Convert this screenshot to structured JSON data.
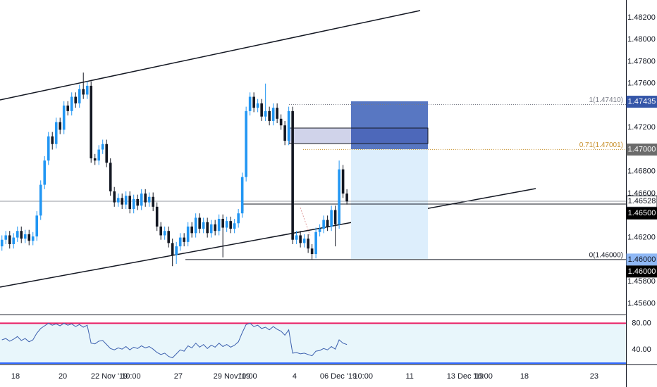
{
  "chart_data": {
    "type": "candlestick",
    "up_color": "#2196f3",
    "down_color": "#131722",
    "x": [
      0,
      1,
      2,
      3,
      4,
      5,
      6,
      7,
      8,
      9,
      10,
      11,
      12,
      13,
      14,
      15,
      16,
      17,
      18,
      19,
      20,
      21,
      22,
      23,
      24,
      25,
      26,
      27,
      28,
      29,
      30,
      31,
      32,
      33,
      34,
      35,
      36,
      37,
      38,
      39,
      40,
      41,
      42,
      43,
      44,
      45,
      46,
      47,
      48,
      49,
      50,
      51,
      52,
      53,
      54,
      55,
      56,
      57,
      58,
      59,
      60,
      61,
      62,
      63,
      64,
      65,
      66,
      67,
      68,
      69,
      70,
      71,
      72,
      73,
      74,
      75,
      76,
      77,
      78,
      79,
      80,
      81,
      82,
      83,
      84,
      85,
      86,
      87,
      88,
      89
    ],
    "open": [
      1.4612,
      1.4618,
      1.4622,
      1.4614,
      1.462,
      1.4626,
      1.4619,
      1.4623,
      1.4617,
      1.4621,
      1.464,
      1.4668,
      1.469,
      1.4712,
      1.4705,
      1.4725,
      1.4718,
      1.474,
      1.4735,
      1.4748,
      1.4742,
      1.4755,
      1.475,
      1.4758,
      1.4692,
      1.469,
      1.47,
      1.4705,
      1.4688,
      1.4662,
      1.4652,
      1.4656,
      1.465,
      1.4658,
      1.4646,
      1.4655,
      1.4649,
      1.466,
      1.4652,
      1.4657,
      1.4648,
      1.463,
      1.4622,
      1.4626,
      1.4615,
      1.4604,
      1.4612,
      1.462,
      1.4616,
      1.463,
      1.4624,
      1.4638,
      1.4628,
      1.4634,
      1.4624,
      1.4632,
      1.4626,
      1.4637,
      1.4629,
      1.4635,
      1.4628,
      1.4633,
      1.4642,
      1.4675,
      1.4735,
      1.4748,
      1.4738,
      1.4742,
      1.473,
      1.4735,
      1.4726,
      1.4738,
      1.4728,
      1.4722,
      1.4708,
      1.4735,
      1.4618,
      1.4622,
      1.4615,
      1.4619,
      1.461,
      1.4605,
      1.4625,
      1.4628,
      1.4636,
      1.463,
      1.4645,
      1.4632,
      1.4682,
      1.466
    ],
    "high": [
      1.4622,
      1.4626,
      1.4626,
      1.4624,
      1.463,
      1.463,
      1.4627,
      1.4627,
      1.4625,
      1.4644,
      1.4672,
      1.4694,
      1.4716,
      1.4716,
      1.4729,
      1.4729,
      1.4744,
      1.4744,
      1.4752,
      1.4752,
      1.4759,
      1.477,
      1.4762,
      1.4762,
      1.4696,
      1.4704,
      1.4709,
      1.4709,
      1.4692,
      1.4666,
      1.466,
      1.466,
      1.4662,
      1.4662,
      1.4659,
      1.4659,
      1.4664,
      1.4664,
      1.4661,
      1.4661,
      1.4652,
      1.4634,
      1.463,
      1.463,
      1.4619,
      1.4616,
      1.4624,
      1.4624,
      1.4634,
      1.4634,
      1.4642,
      1.4642,
      1.4638,
      1.4638,
      1.4636,
      1.4636,
      1.4641,
      1.4641,
      1.4639,
      1.4639,
      1.4637,
      1.4646,
      1.4679,
      1.4739,
      1.4752,
      1.4752,
      1.4746,
      1.4746,
      1.476,
      1.4739,
      1.4742,
      1.4742,
      1.4732,
      1.4726,
      1.4739,
      1.4739,
      1.4626,
      1.4626,
      1.4623,
      1.4623,
      1.4614,
      1.4629,
      1.4632,
      1.464,
      1.464,
      1.4649,
      1.4649,
      1.469,
      1.4686,
      1.4664
    ],
    "low": [
      1.4608,
      1.4614,
      1.461,
      1.461,
      1.4616,
      1.4615,
      1.4615,
      1.4613,
      1.4613,
      1.4617,
      1.4636,
      1.4664,
      1.4686,
      1.47,
      1.4701,
      1.4714,
      1.4714,
      1.4731,
      1.4731,
      1.4738,
      1.4738,
      1.4746,
      1.4746,
      1.4688,
      1.4686,
      1.4686,
      1.4696,
      1.4684,
      1.4658,
      1.4648,
      1.4648,
      1.4646,
      1.4646,
      1.4642,
      1.4642,
      1.4645,
      1.4645,
      1.4648,
      1.4648,
      1.4644,
      1.4626,
      1.4618,
      1.4618,
      1.4611,
      1.4594,
      1.4596,
      1.4608,
      1.4612,
      1.4612,
      1.462,
      1.462,
      1.4624,
      1.4624,
      1.462,
      1.462,
      1.4622,
      1.4622,
      1.4602,
      1.4625,
      1.4624,
      1.4624,
      1.4629,
      1.4638,
      1.4671,
      1.4731,
      1.4734,
      1.4734,
      1.4726,
      1.4726,
      1.4722,
      1.4722,
      1.4724,
      1.4718,
      1.4704,
      1.4704,
      1.4614,
      1.4614,
      1.4611,
      1.4611,
      1.4606,
      1.46,
      1.4601,
      1.4621,
      1.4624,
      1.4626,
      1.4626,
      1.4612,
      1.4628,
      1.4656,
      1.465
    ],
    "close": [
      1.4618,
      1.4622,
      1.4614,
      1.462,
      1.4626,
      1.4619,
      1.4623,
      1.4617,
      1.4621,
      1.464,
      1.4668,
      1.469,
      1.4712,
      1.4705,
      1.4725,
      1.4718,
      1.474,
      1.4735,
      1.4748,
      1.4742,
      1.4755,
      1.475,
      1.4758,
      1.4692,
      1.469,
      1.47,
      1.4705,
      1.4688,
      1.4662,
      1.4652,
      1.4656,
      1.465,
      1.4658,
      1.4646,
      1.4655,
      1.4649,
      1.466,
      1.4652,
      1.4657,
      1.4648,
      1.463,
      1.4622,
      1.4626,
      1.4615,
      1.4604,
      1.4612,
      1.462,
      1.4616,
      1.463,
      1.4624,
      1.4638,
      1.4628,
      1.4634,
      1.4624,
      1.4632,
      1.4626,
      1.4637,
      1.4629,
      1.4635,
      1.4628,
      1.4633,
      1.4642,
      1.4675,
      1.4735,
      1.4748,
      1.4738,
      1.4742,
      1.473,
      1.4735,
      1.4726,
      1.4738,
      1.4728,
      1.4722,
      1.4708,
      1.4735,
      1.4618,
      1.4622,
      1.4615,
      1.4619,
      1.461,
      1.4605,
      1.4625,
      1.4628,
      1.4636,
      1.463,
      1.4645,
      1.4632,
      1.4682,
      1.466,
      1.46528
    ],
    "xlim": [
      -0.5,
      161
    ],
    "xticks": [
      {
        "value": 3.5,
        "label": "18"
      },
      {
        "value": 15.7,
        "label": "20"
      },
      {
        "value": 27.7,
        "label": "22 Nov '19"
      },
      {
        "value": 33.3,
        "label": "10:00"
      },
      {
        "value": 45.5,
        "label": "27"
      },
      {
        "value": 59.3,
        "label": "29 Nov '19"
      },
      {
        "value": 63.3,
        "label": "10:00"
      },
      {
        "value": 75.5,
        "label": "4"
      },
      {
        "value": 86.8,
        "label": "06 Dec '19"
      },
      {
        "value": 93.2,
        "label": "10:00"
      },
      {
        "value": 105.2,
        "label": "11"
      },
      {
        "value": 119.5,
        "label": "13 Dec '19"
      },
      {
        "value": 124.1,
        "label": "10:00"
      },
      {
        "value": 134.8,
        "label": "18"
      },
      {
        "value": 152.8,
        "label": "23"
      }
    ],
    "ylim": [
      1.455,
      1.4836
    ],
    "yticks": [
      {
        "value": 1.456,
        "label": "1.45600"
      },
      {
        "value": 1.458,
        "label": "1.45800"
      },
      {
        "value": 1.46,
        "label": "1.46000"
      },
      {
        "value": 1.462,
        "label": "1.46200"
      },
      {
        "value": 1.464,
        "label": "1.46400"
      },
      {
        "value": 1.466,
        "label": "1.46600"
      },
      {
        "value": 1.468,
        "label": "1.46800"
      },
      {
        "value": 1.47,
        "label": "1.47000"
      },
      {
        "value": 1.472,
        "label": "1.47200"
      },
      {
        "value": 1.474,
        "label": "1.47400"
      },
      {
        "value": 1.476,
        "label": "1.47600"
      },
      {
        "value": 1.478,
        "label": "1.47800"
      },
      {
        "value": 1.48,
        "label": "1.48000"
      },
      {
        "value": 1.482,
        "label": "1.48200"
      }
    ],
    "price_tags": [
      {
        "value": 1.47435,
        "label": "1.47435",
        "color": "#3556a8",
        "text_color": "#ffffff"
      },
      {
        "value": 1.47,
        "label": "1.47000",
        "color": "#6b6b6b",
        "text_color": "#ffffff"
      },
      {
        "value": 1.46528,
        "label": "1.46528",
        "color": "#ffffff",
        "text_color": "#131722"
      },
      {
        "value": 1.465,
        "label": "1.46500",
        "color": "#000000",
        "text_color": "#ffffff"
      },
      {
        "value": 1.46,
        "label": "1.46000",
        "color": "#8fb8f5",
        "text_color": "#131722"
      },
      {
        "value": 1.46,
        "label": "1.46000",
        "color": "#000000",
        "text_color": "#ffffff"
      }
    ],
    "fib_levels": [
      {
        "value": 1.4741,
        "label": "1(1.47410)",
        "color": "#787b86",
        "line": "dotted"
      },
      {
        "value": 1.47001,
        "label": "0.71(1.47001)",
        "color": "#c8902a",
        "line": "dotted"
      },
      {
        "value": 1.46,
        "label": "0(1.46000)",
        "color": "#131722",
        "line": "solid"
      }
    ],
    "rsi": {
      "color": "#3b5fae",
      "values": [
        55,
        57,
        53,
        56,
        60,
        54,
        57,
        52,
        55,
        65,
        72,
        76,
        80,
        77,
        79,
        76,
        80,
        77,
        79,
        75,
        78,
        74,
        77,
        50,
        49,
        53,
        54,
        48,
        42,
        40,
        43,
        41,
        45,
        40,
        44,
        42,
        46,
        43,
        45,
        41,
        36,
        33,
        35,
        30,
        28,
        34,
        40,
        38,
        46,
        43,
        50,
        44,
        48,
        42,
        47,
        44,
        50,
        45,
        48,
        44,
        47,
        52,
        66,
        78,
        80,
        75,
        77,
        72,
        74,
        70,
        75,
        71,
        68,
        62,
        70,
        35,
        36,
        34,
        35,
        33,
        31,
        38,
        39,
        42,
        40,
        45,
        41,
        55,
        50,
        48
      ],
      "ylim": [
        18,
        92
      ],
      "yticks": [
        {
          "value": 80,
          "label": "80.00"
        },
        {
          "value": 40,
          "label": "40.00"
        }
      ],
      "bands": [
        80,
        20
      ],
      "band_colors": [
        "#e91e63",
        "#2962ff"
      ],
      "fill": "#e8f6fb"
    }
  }
}
